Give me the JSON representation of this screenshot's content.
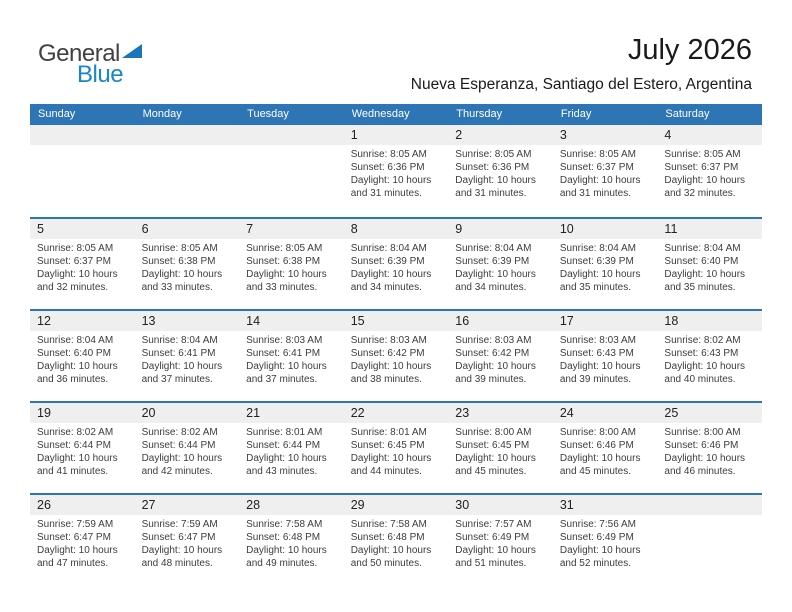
{
  "logo": {
    "general": "General",
    "blue": "Blue"
  },
  "title": "July 2026",
  "subtitle": "Nueva Esperanza, Santiago del Estero, Argentina",
  "weekdays": [
    "Sunday",
    "Monday",
    "Tuesday",
    "Wednesday",
    "Thursday",
    "Friday",
    "Saturday"
  ],
  "labels": {
    "sunrise": "Sunrise:",
    "sunset": "Sunset:",
    "daylight": "Daylight:"
  },
  "colors": {
    "header_blue": "#2e75b6",
    "line_blue": "#2e75b6",
    "band_gray": "#efefef",
    "logo_gray": "#414042",
    "logo_blue": "#1787c9",
    "logo_triangle": "#1b75bb"
  },
  "weeks": [
    [
      null,
      null,
      null,
      {
        "day": "1",
        "sunrise": "8:05 AM",
        "sunset": "6:36 PM",
        "daylight": "10 hours and 31 minutes."
      },
      {
        "day": "2",
        "sunrise": "8:05 AM",
        "sunset": "6:36 PM",
        "daylight": "10 hours and 31 minutes."
      },
      {
        "day": "3",
        "sunrise": "8:05 AM",
        "sunset": "6:37 PM",
        "daylight": "10 hours and 31 minutes."
      },
      {
        "day": "4",
        "sunrise": "8:05 AM",
        "sunset": "6:37 PM",
        "daylight": "10 hours and 32 minutes."
      }
    ],
    [
      {
        "day": "5",
        "sunrise": "8:05 AM",
        "sunset": "6:37 PM",
        "daylight": "10 hours and 32 minutes."
      },
      {
        "day": "6",
        "sunrise": "8:05 AM",
        "sunset": "6:38 PM",
        "daylight": "10 hours and 33 minutes."
      },
      {
        "day": "7",
        "sunrise": "8:05 AM",
        "sunset": "6:38 PM",
        "daylight": "10 hours and 33 minutes."
      },
      {
        "day": "8",
        "sunrise": "8:04 AM",
        "sunset": "6:39 PM",
        "daylight": "10 hours and 34 minutes."
      },
      {
        "day": "9",
        "sunrise": "8:04 AM",
        "sunset": "6:39 PM",
        "daylight": "10 hours and 34 minutes."
      },
      {
        "day": "10",
        "sunrise": "8:04 AM",
        "sunset": "6:39 PM",
        "daylight": "10 hours and 35 minutes."
      },
      {
        "day": "11",
        "sunrise": "8:04 AM",
        "sunset": "6:40 PM",
        "daylight": "10 hours and 35 minutes."
      }
    ],
    [
      {
        "day": "12",
        "sunrise": "8:04 AM",
        "sunset": "6:40 PM",
        "daylight": "10 hours and 36 minutes."
      },
      {
        "day": "13",
        "sunrise": "8:04 AM",
        "sunset": "6:41 PM",
        "daylight": "10 hours and 37 minutes."
      },
      {
        "day": "14",
        "sunrise": "8:03 AM",
        "sunset": "6:41 PM",
        "daylight": "10 hours and 37 minutes."
      },
      {
        "day": "15",
        "sunrise": "8:03 AM",
        "sunset": "6:42 PM",
        "daylight": "10 hours and 38 minutes."
      },
      {
        "day": "16",
        "sunrise": "8:03 AM",
        "sunset": "6:42 PM",
        "daylight": "10 hours and 39 minutes."
      },
      {
        "day": "17",
        "sunrise": "8:03 AM",
        "sunset": "6:43 PM",
        "daylight": "10 hours and 39 minutes."
      },
      {
        "day": "18",
        "sunrise": "8:02 AM",
        "sunset": "6:43 PM",
        "daylight": "10 hours and 40 minutes."
      }
    ],
    [
      {
        "day": "19",
        "sunrise": "8:02 AM",
        "sunset": "6:44 PM",
        "daylight": "10 hours and 41 minutes."
      },
      {
        "day": "20",
        "sunrise": "8:02 AM",
        "sunset": "6:44 PM",
        "daylight": "10 hours and 42 minutes."
      },
      {
        "day": "21",
        "sunrise": "8:01 AM",
        "sunset": "6:44 PM",
        "daylight": "10 hours and 43 minutes."
      },
      {
        "day": "22",
        "sunrise": "8:01 AM",
        "sunset": "6:45 PM",
        "daylight": "10 hours and 44 minutes."
      },
      {
        "day": "23",
        "sunrise": "8:00 AM",
        "sunset": "6:45 PM",
        "daylight": "10 hours and 45 minutes."
      },
      {
        "day": "24",
        "sunrise": "8:00 AM",
        "sunset": "6:46 PM",
        "daylight": "10 hours and 45 minutes."
      },
      {
        "day": "25",
        "sunrise": "8:00 AM",
        "sunset": "6:46 PM",
        "daylight": "10 hours and 46 minutes."
      }
    ],
    [
      {
        "day": "26",
        "sunrise": "7:59 AM",
        "sunset": "6:47 PM",
        "daylight": "10 hours and 47 minutes."
      },
      {
        "day": "27",
        "sunrise": "7:59 AM",
        "sunset": "6:47 PM",
        "daylight": "10 hours and 48 minutes."
      },
      {
        "day": "28",
        "sunrise": "7:58 AM",
        "sunset": "6:48 PM",
        "daylight": "10 hours and 49 minutes."
      },
      {
        "day": "29",
        "sunrise": "7:58 AM",
        "sunset": "6:48 PM",
        "daylight": "10 hours and 50 minutes."
      },
      {
        "day": "30",
        "sunrise": "7:57 AM",
        "sunset": "6:49 PM",
        "daylight": "10 hours and 51 minutes."
      },
      {
        "day": "31",
        "sunrise": "7:56 AM",
        "sunset": "6:49 PM",
        "daylight": "10 hours and 52 minutes."
      },
      null
    ]
  ]
}
